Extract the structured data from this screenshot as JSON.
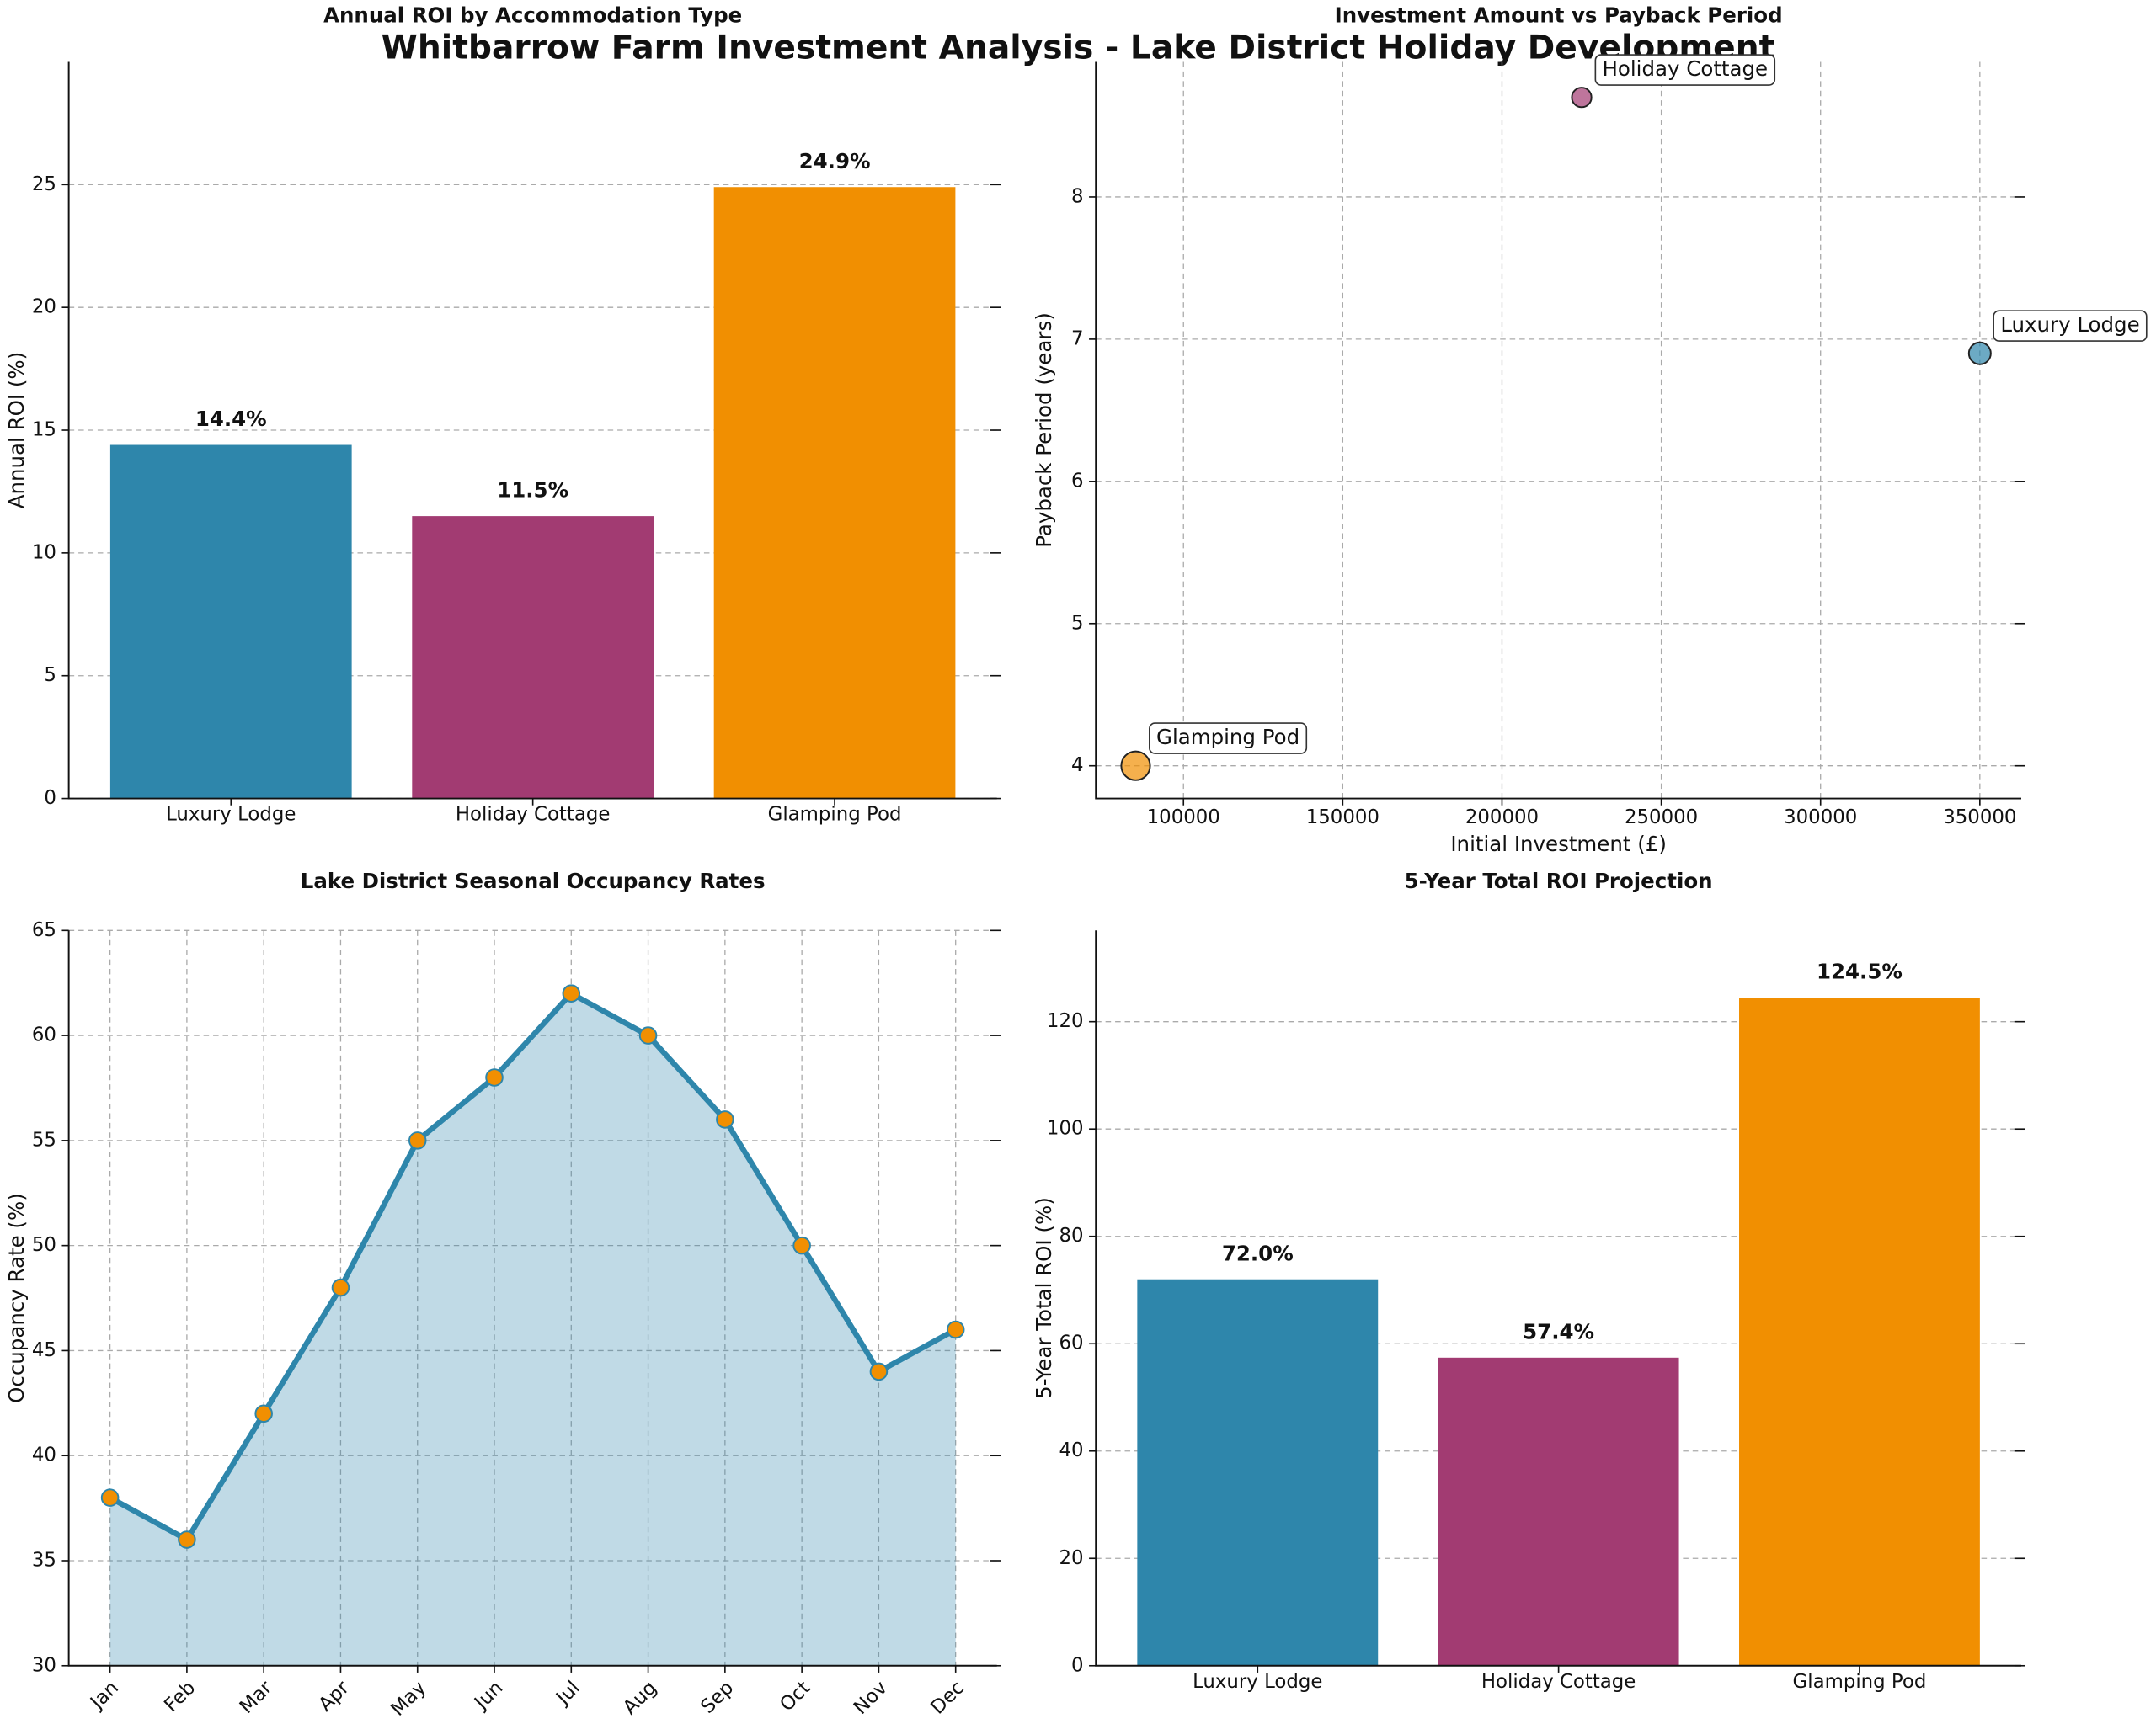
{
  "title": "Whitbarrow Farm Investment Analysis - Lake District Holiday Development",
  "chart_data": [
    {
      "type": "bar",
      "title": "Annual ROI by Accommodation Type",
      "ylabel": "Annual ROI (%)",
      "categories": [
        "Luxury Lodge",
        "Holiday Cottage",
        "Glamping Pod"
      ],
      "values": [
        14.4,
        11.5,
        24.9
      ],
      "value_labels": [
        "14.4%",
        "11.5%",
        "24.9%"
      ],
      "colors": [
        "#2e86ab",
        "#a23b72",
        "#f18f01"
      ],
      "ylim": [
        0,
        30
      ],
      "yticks": [
        0,
        5,
        10,
        15,
        20,
        25
      ],
      "grid": true
    },
    {
      "type": "scatter",
      "title": "Investment Amount vs Payback Period",
      "xlabel": "Initial Investment (£)",
      "ylabel": "Payback Period (years)",
      "labels": [
        "Luxury Lodge",
        "Holiday Cottage",
        "Glamping Pod"
      ],
      "x": [
        350000,
        225000,
        85000
      ],
      "y": [
        6.9,
        8.7,
        4.0
      ],
      "sizes": [
        14.4,
        11.5,
        24.9
      ],
      "colors": [
        "#2e86ab",
        "#a23b72",
        "#f18f01"
      ],
      "xlim": [
        72500,
        363000
      ],
      "xticks": [
        100000,
        150000,
        200000,
        250000,
        300000,
        350000
      ],
      "ylim": [
        3.77,
        8.95
      ],
      "yticks": [
        4,
        5,
        6,
        7,
        8
      ],
      "grid": true
    },
    {
      "type": "line",
      "title": "Lake District Seasonal Occupancy Rates",
      "ylabel": "Occupancy Rate (%)",
      "categories": [
        "Jan",
        "Feb",
        "Mar",
        "Apr",
        "May",
        "Jun",
        "Jul",
        "Aug",
        "Sep",
        "Oct",
        "Nov",
        "Dec"
      ],
      "values": [
        38,
        36,
        42,
        48,
        55,
        58,
        62,
        60,
        56,
        50,
        44,
        46
      ],
      "color": "#2e86ab",
      "marker_color": "#f18f01",
      "ylim": [
        30,
        65
      ],
      "yticks": [
        30,
        35,
        40,
        45,
        50,
        55,
        60,
        65
      ],
      "grid": true
    },
    {
      "type": "bar",
      "title": "5-Year Total ROI Projection",
      "ylabel": "5-Year Total ROI (%)",
      "categories": [
        "Luxury Lodge",
        "Holiday Cottage",
        "Glamping Pod"
      ],
      "values": [
        72.0,
        57.4,
        124.5
      ],
      "value_labels": [
        "72.0%",
        "57.4%",
        "124.5%"
      ],
      "colors": [
        "#2e86ab",
        "#a23b72",
        "#f18f01"
      ],
      "ylim": [
        0,
        137
      ],
      "yticks": [
        0,
        20,
        40,
        60,
        80,
        100,
        120
      ],
      "grid": true
    }
  ]
}
